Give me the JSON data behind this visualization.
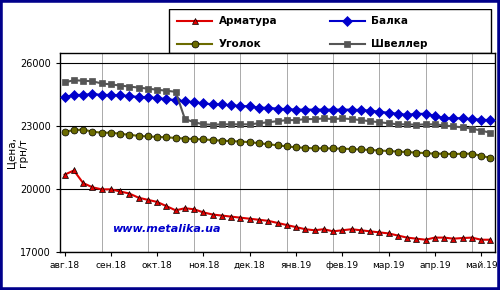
{
  "ylabel": "Цена,\nгрн/т",
  "watermark": "www.metalika.ua",
  "watermark_color": "#0000cc",
  "bg_color": "#ffffff",
  "outer_border_color": "#00008B",
  "x_labels": [
    "авг.18",
    "сен.18",
    "окт.18",
    "ноя.18",
    "дек.18",
    "янв.19",
    "фев.19",
    "мар.19",
    "апр.19",
    "май.19"
  ],
  "x_tick_pos": [
    0,
    5,
    10,
    15,
    20,
    25,
    30,
    35,
    40,
    45
  ],
  "ylim": [
    17000,
    26500
  ],
  "yticks": [
    17000,
    20000,
    23000,
    26000
  ],
  "n_points": 47,
  "series": {
    "Арматура": {
      "color": "#dd0000",
      "marker": "^",
      "markersize": 5,
      "linewidth": 1.5,
      "markeredgecolor": "#000000",
      "markeredgewidth": 0.5,
      "values": [
        20700,
        20900,
        20300,
        20100,
        20000,
        20000,
        19900,
        19800,
        19600,
        19500,
        19400,
        19200,
        19000,
        19100,
        19050,
        18900,
        18800,
        18750,
        18700,
        18650,
        18600,
        18550,
        18500,
        18400,
        18300,
        18200,
        18100,
        18050,
        18100,
        18000,
        18050,
        18100,
        18050,
        18000,
        17950,
        17900,
        17800,
        17700,
        17650,
        17600,
        17700,
        17700,
        17650,
        17680,
        17700,
        17600,
        17600
      ]
    },
    "Балка": {
      "color": "#0000cc",
      "marker": "D",
      "markersize": 5,
      "linewidth": 1.5,
      "markeredgecolor": "#0000cc",
      "markeredgewidth": 0.5,
      "values": [
        24400,
        24500,
        24500,
        24550,
        24500,
        24500,
        24480,
        24450,
        24400,
        24380,
        24350,
        24300,
        24250,
        24200,
        24150,
        24100,
        24050,
        24050,
        24000,
        23980,
        23950,
        23900,
        23880,
        23850,
        23820,
        23800,
        23800,
        23800,
        23800,
        23800,
        23800,
        23800,
        23780,
        23750,
        23700,
        23650,
        23600,
        23550,
        23600,
        23600,
        23500,
        23400,
        23400,
        23380,
        23350,
        23320,
        23300
      ]
    },
    "Уголок": {
      "color": "#6b6b00",
      "marker": "o",
      "markersize": 5,
      "linewidth": 1.5,
      "markeredgecolor": "#000000",
      "markeredgewidth": 0.5,
      "values": [
        22750,
        22820,
        22850,
        22750,
        22700,
        22700,
        22650,
        22600,
        22550,
        22520,
        22500,
        22480,
        22450,
        22420,
        22400,
        22380,
        22350,
        22320,
        22300,
        22280,
        22250,
        22200,
        22150,
        22100,
        22050,
        22000,
        21980,
        21950,
        21960,
        21950,
        21940,
        21920,
        21900,
        21880,
        21850,
        21830,
        21800,
        21780,
        21750,
        21730,
        21700,
        21700,
        21680,
        21700,
        21700,
        21600,
        21500
      ]
    },
    "Швеллер": {
      "color": "#555555",
      "marker": "s",
      "markersize": 5,
      "linewidth": 1.5,
      "markeredgecolor": "#555555",
      "markeredgewidth": 0.5,
      "values": [
        25100,
        25200,
        25180,
        25150,
        25050,
        25000,
        24950,
        24900,
        24850,
        24800,
        24750,
        24700,
        24650,
        23350,
        23200,
        23100,
        23080,
        23100,
        23100,
        23100,
        23100,
        23150,
        23200,
        23250,
        23300,
        23300,
        23350,
        23350,
        23380,
        23350,
        23380,
        23350,
        23300,
        23250,
        23200,
        23150,
        23100,
        23100,
        23080,
        23100,
        23100,
        23050,
        23000,
        22950,
        22900,
        22800,
        22700
      ]
    }
  },
  "vline_positions": [
    4,
    9,
    14,
    19,
    24,
    29,
    34,
    39,
    44
  ],
  "legend_order": [
    "Арматура",
    "Балка",
    "Уголок",
    "Швеллер"
  ]
}
